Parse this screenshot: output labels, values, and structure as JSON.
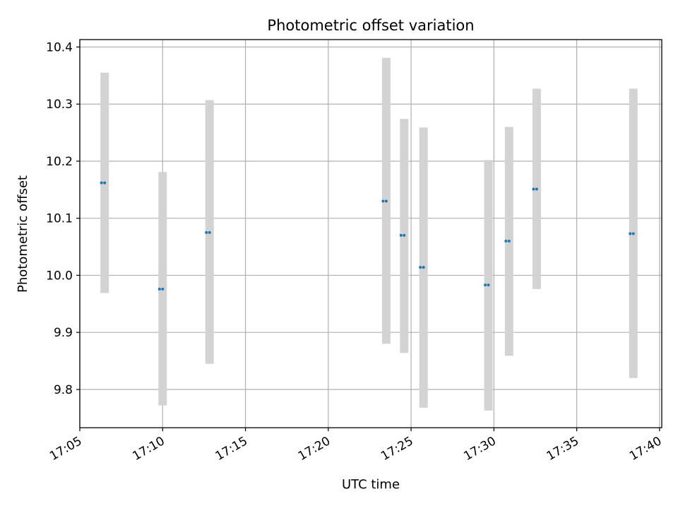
{
  "chart_data": {
    "type": "scatter",
    "title": "Photometric offset variation",
    "xlabel": "UTC time",
    "ylabel": "Photometric offset",
    "x_ticks": [
      "17:05",
      "17:10",
      "17:15",
      "17:20",
      "17:25",
      "17:30",
      "17:35",
      "17:40"
    ],
    "y_ticks": [
      "9.8",
      "9.9",
      "10.0",
      "10.1",
      "10.2",
      "10.3",
      "10.4"
    ],
    "xlim": [
      "17:05:00",
      "17:40:08"
    ],
    "ylim": [
      9.733,
      10.413
    ],
    "grid": true,
    "colors": {
      "points": "#1f77b4",
      "error_bars": "#d3d3d3",
      "grid": "#b0b0b0"
    },
    "points": [
      {
        "x": "17:06:30",
        "y": 10.162,
        "low": 9.969,
        "high": 10.355
      },
      {
        "x": "17:10:00",
        "y": 9.976,
        "low": 9.772,
        "high": 10.181
      },
      {
        "x": "17:12:50",
        "y": 10.075,
        "low": 9.845,
        "high": 10.307
      },
      {
        "x": "17:23:30",
        "y": 10.13,
        "low": 9.88,
        "high": 10.381
      },
      {
        "x": "17:24:35",
        "y": 10.07,
        "low": 9.864,
        "high": 10.274
      },
      {
        "x": "17:25:45",
        "y": 10.014,
        "low": 9.768,
        "high": 10.259
      },
      {
        "x": "17:29:40",
        "y": 9.983,
        "low": 9.763,
        "high": 10.202
      },
      {
        "x": "17:30:55",
        "y": 10.06,
        "low": 9.859,
        "high": 10.26
      },
      {
        "x": "17:32:35",
        "y": 10.151,
        "low": 9.976,
        "high": 10.327
      },
      {
        "x": "17:38:25",
        "y": 10.073,
        "low": 9.82,
        "high": 10.327
      }
    ]
  }
}
